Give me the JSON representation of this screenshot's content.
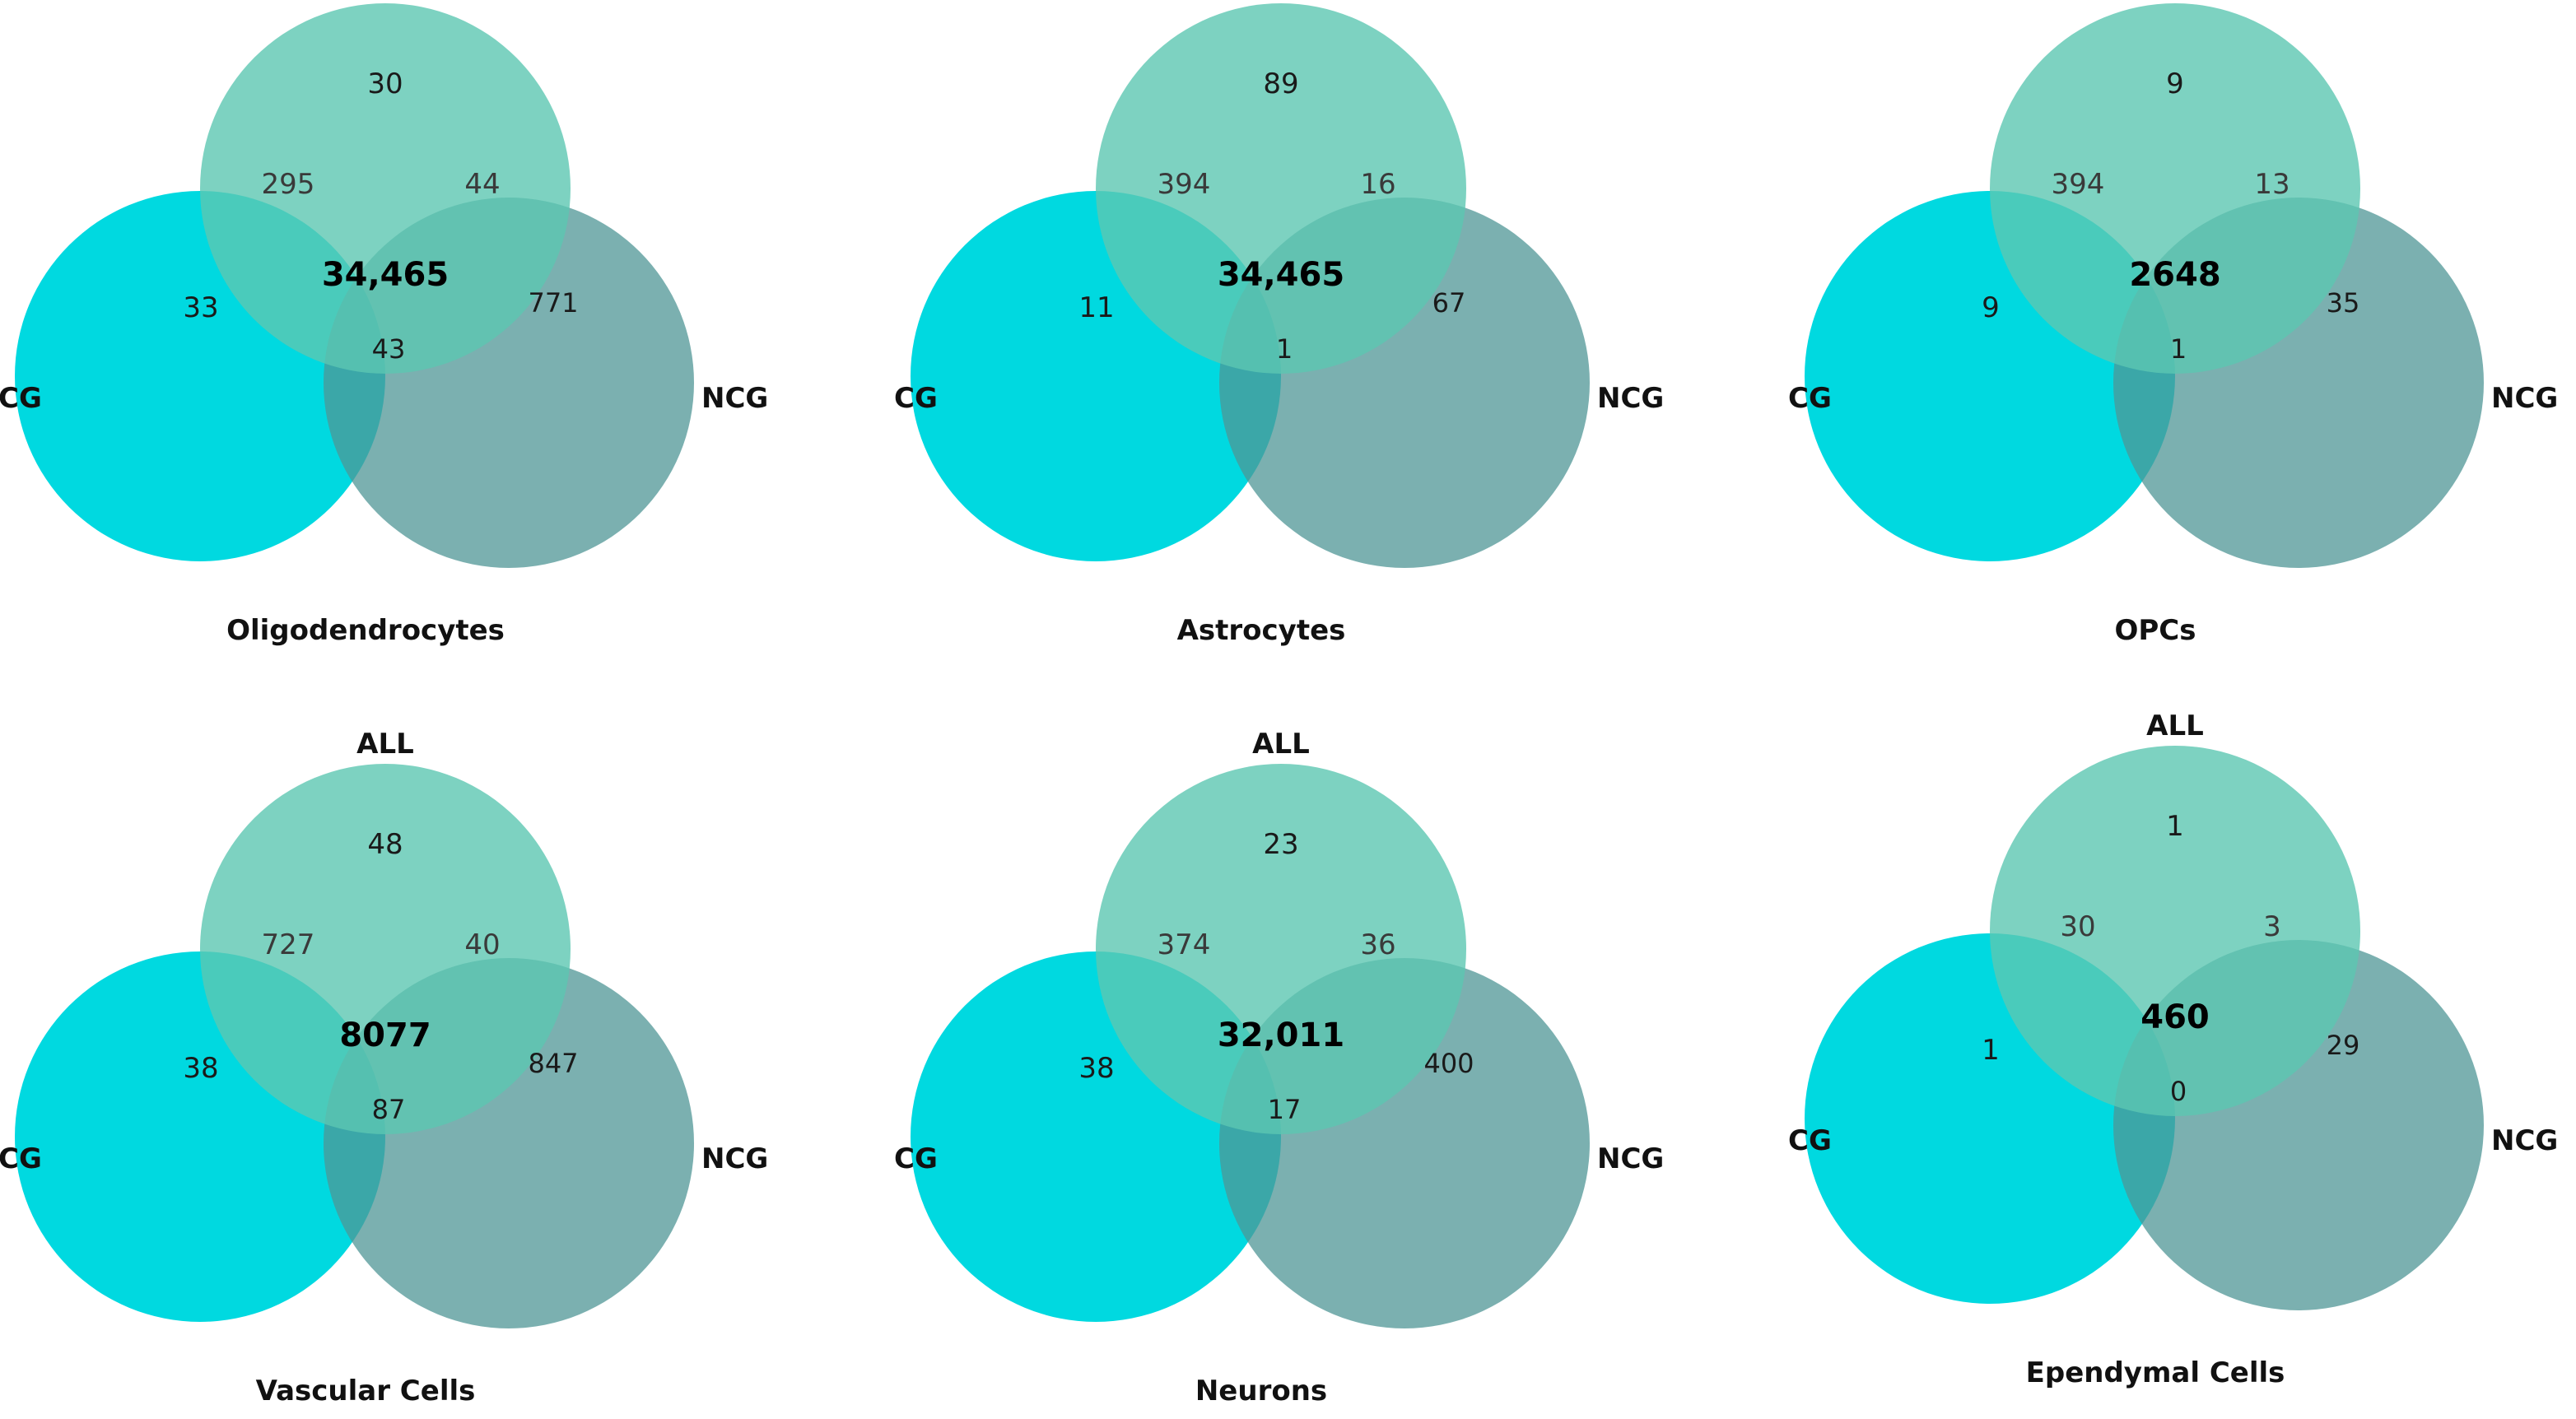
{
  "colors": {
    "all": "#5cc7b2",
    "cg": "#00d9e0",
    "ncg": "#4f9596",
    "text": "#111111"
  },
  "set_labels": {
    "all": "ALL",
    "cg": "CG",
    "ncg": "NCG"
  },
  "panels": [
    {
      "title": "Oligodendrocytes",
      "counts": {
        "all_only": "30",
        "cg_only": "33",
        "ncg_only": "771",
        "all_cg": "295",
        "all_ncg": "44",
        "cg_ncg": "43",
        "all_cg_ncg": "34,465"
      }
    },
    {
      "title": "Astrocytes",
      "counts": {
        "all_only": "89",
        "cg_only": "11",
        "ncg_only": "67",
        "all_cg": "394",
        "all_ncg": "16",
        "cg_ncg": "1",
        "all_cg_ncg": "34,465"
      }
    },
    {
      "title": "OPCs",
      "counts": {
        "all_only": "9",
        "cg_only": "9",
        "ncg_only": "35",
        "all_cg": "394",
        "all_ncg": "13",
        "cg_ncg": "1",
        "all_cg_ncg": "2648"
      }
    },
    {
      "title": "Vascular Cells",
      "counts": {
        "all_only": "48",
        "cg_only": "38",
        "ncg_only": "847",
        "all_cg": "727",
        "all_ncg": "40",
        "cg_ncg": "87",
        "all_cg_ncg": "8077"
      }
    },
    {
      "title": "Neurons",
      "counts": {
        "all_only": "23",
        "cg_only": "38",
        "ncg_only": "400",
        "all_cg": "374",
        "all_ncg": "36",
        "cg_ncg": "17",
        "all_cg_ncg": "32,011"
      }
    },
    {
      "title": "Ependymal Cells",
      "counts": {
        "all_only": "1",
        "cg_only": "1",
        "ncg_only": "29",
        "all_cg": "30",
        "all_ncg": "3",
        "cg_ncg": "0",
        "all_cg_ncg": "460"
      }
    }
  ]
}
